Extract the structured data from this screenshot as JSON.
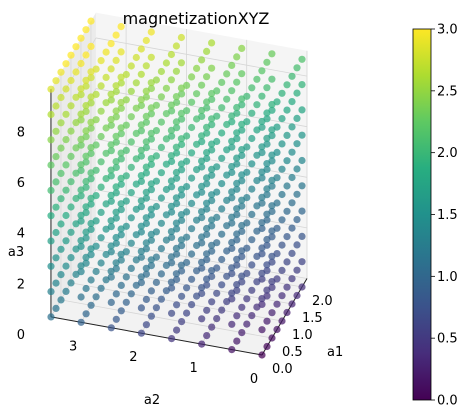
{
  "chart_data": {
    "type": "scatter",
    "projection": "3d",
    "title": "magnetizationXYZ",
    "xlabel": "a1",
    "ylabel": "a2",
    "zlabel": "a3",
    "xlim": [
      0,
      2.25
    ],
    "ylim": [
      0,
      3.5
    ],
    "zlim": [
      0,
      9
    ],
    "xticks": [
      "0.0",
      "0.5",
      "1.0",
      "1.5",
      "2.0"
    ],
    "xtick_values": [
      0,
      0.5,
      1.0,
      1.5,
      2.0
    ],
    "yticks": [
      "0",
      "1",
      "2",
      "3"
    ],
    "ytick_values": [
      0,
      1,
      2,
      3
    ],
    "zticks": [
      "0",
      "2",
      "4",
      "6",
      "8"
    ],
    "ztick_values": [
      0,
      2,
      4,
      6,
      8
    ],
    "grid": true,
    "points": {
      "a1_values": [
        0,
        0.25,
        0.5,
        0.75,
        1.0,
        1.25,
        1.5,
        1.75,
        2.0
      ],
      "a2_values": [
        0,
        0.5,
        1.0,
        1.5,
        2.0,
        2.5,
        3.0,
        3.5
      ],
      "a3_values": [
        0,
        1,
        2,
        3,
        4,
        5,
        6,
        7,
        8,
        9
      ],
      "color_value": "magnetization, increasing with a1, a2 and a3"
    },
    "colorbar": {
      "colormap": "viridis",
      "range": [
        0.0,
        3.0
      ],
      "ticks": [
        "0.0",
        "0.5",
        "1.0",
        "1.5",
        "2.0",
        "2.5",
        "3.0"
      ],
      "tick_values": [
        0,
        0.5,
        1.0,
        1.5,
        2.0,
        2.5,
        3.0
      ]
    }
  }
}
